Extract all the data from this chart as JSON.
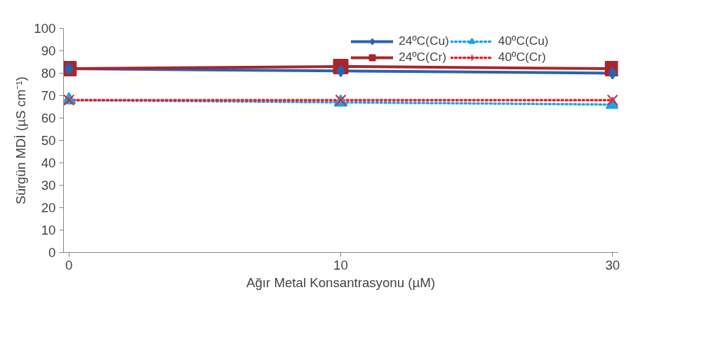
{
  "chart_data": {
    "type": "line",
    "xlabel": "Ağır Metal Konsantrasyonu (µM)",
    "ylabel": "Sürgün MDİ (µS cm⁻¹)",
    "categories": [
      "0",
      "10",
      "30"
    ],
    "series": [
      {
        "name": "24ºC(Cu)",
        "color": "#2a62ae",
        "values": [
          82,
          81,
          80
        ],
        "marker": "diamond",
        "line_style": "solid"
      },
      {
        "name": "24ºC(Cr)",
        "color": "#a8262b",
        "values": [
          82,
          83,
          82
        ],
        "marker": "square",
        "line_style": "solid"
      },
      {
        "name": "40ºC(Cu)",
        "color": "#1aa3e6",
        "values": [
          68,
          67,
          66
        ],
        "marker": "triangle",
        "line_style": "dotted"
      },
      {
        "name": "40ºC(Cr)",
        "color": "#ee1c25",
        "values": [
          68,
          68,
          68
        ],
        "marker": "cross",
        "line_style": "dotted"
      }
    ],
    "ylim": [
      0,
      100
    ],
    "yticks": [
      0,
      10,
      20,
      30,
      40,
      50,
      60,
      70,
      80,
      90,
      100
    ],
    "grid": false,
    "legend": "top right"
  }
}
